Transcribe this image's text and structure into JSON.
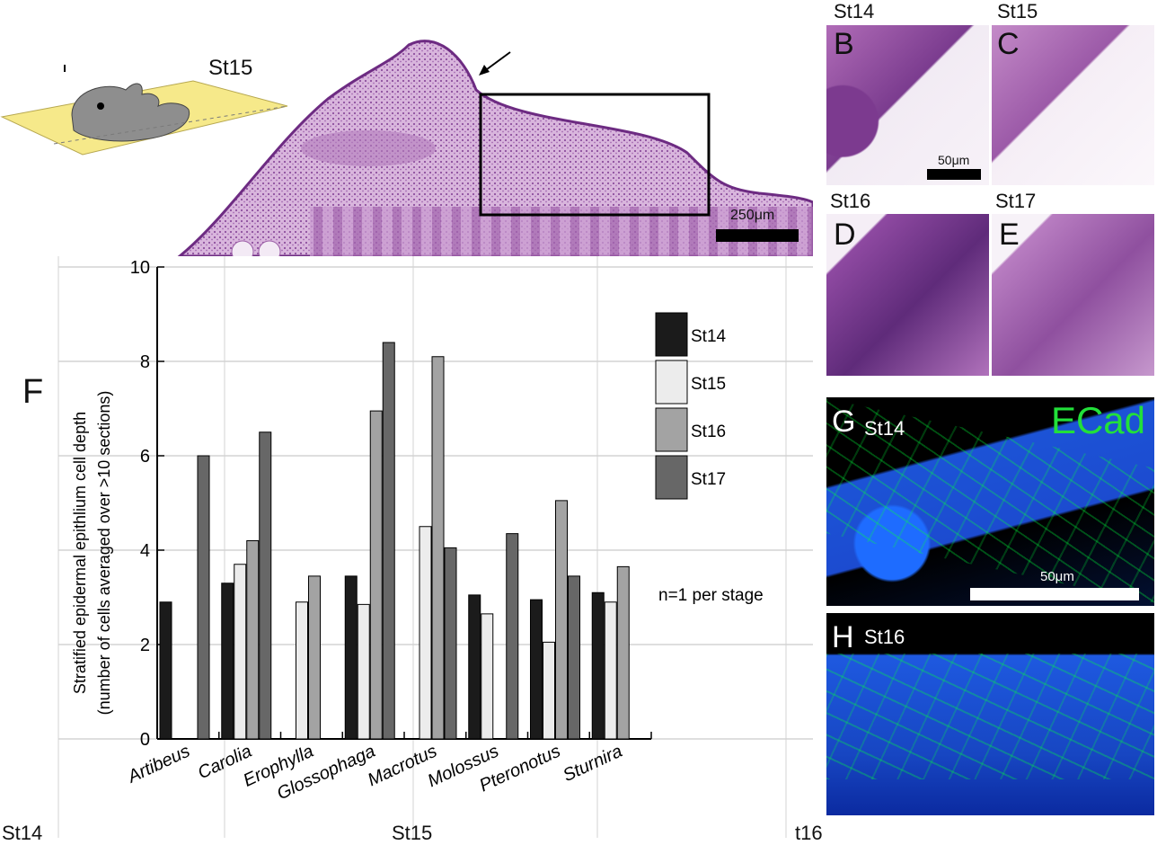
{
  "figure": {
    "panel_a": {
      "stage_label": "St15",
      "scale_label": "250μm"
    },
    "panel_f_letter": "F",
    "micro_panels": [
      {
        "id": "B",
        "stage": "St14",
        "scale_label": "50μm"
      },
      {
        "id": "C",
        "stage": "St15"
      },
      {
        "id": "D",
        "stage": "St16"
      },
      {
        "id": "E",
        "stage": "St17"
      }
    ],
    "fluo_panels": [
      {
        "id": "G",
        "stage": "St14",
        "marker": "ECad",
        "scale_label": "50μm"
      },
      {
        "id": "H",
        "stage": "St16"
      }
    ],
    "bottom_cutoff": [
      "St14",
      "St15",
      "t16"
    ],
    "colors": {
      "ecad_green": "#22e03a",
      "st14": "#1b1b1b",
      "st15": "#ececec",
      "st16": "#a3a3a3",
      "st17": "#676767"
    }
  },
  "chart_data": {
    "type": "bar",
    "ylabel_line1": "Stratified epidermal epithlium cell depth",
    "ylabel_line2": "(number of cells averaged over >10  sections)",
    "ylim": [
      0,
      10
    ],
    "yticks": [
      "0",
      "2",
      "4",
      "6",
      "8",
      "10"
    ],
    "grid": true,
    "legend_position": "right",
    "annotation": "n=1 per stage",
    "categories": [
      "Artibeus",
      "Carolia",
      "Erophylla",
      "Glossophaga",
      "Macrotus",
      "Molossus",
      "Pteronotus",
      "Sturnira"
    ],
    "series": [
      {
        "name": "St14",
        "values": [
          2.9,
          3.3,
          0,
          3.45,
          0,
          3.05,
          2.95,
          3.1
        ]
      },
      {
        "name": "St15",
        "values": [
          0,
          3.7,
          2.9,
          2.85,
          4.5,
          2.65,
          2.05,
          2.9
        ]
      },
      {
        "name": "St16",
        "values": [
          0,
          4.2,
          3.45,
          6.95,
          8.1,
          0,
          5.05,
          3.65
        ]
      },
      {
        "name": "St17",
        "values": [
          6.0,
          6.5,
          0,
          8.4,
          4.05,
          4.35,
          3.45,
          0
        ]
      }
    ]
  }
}
